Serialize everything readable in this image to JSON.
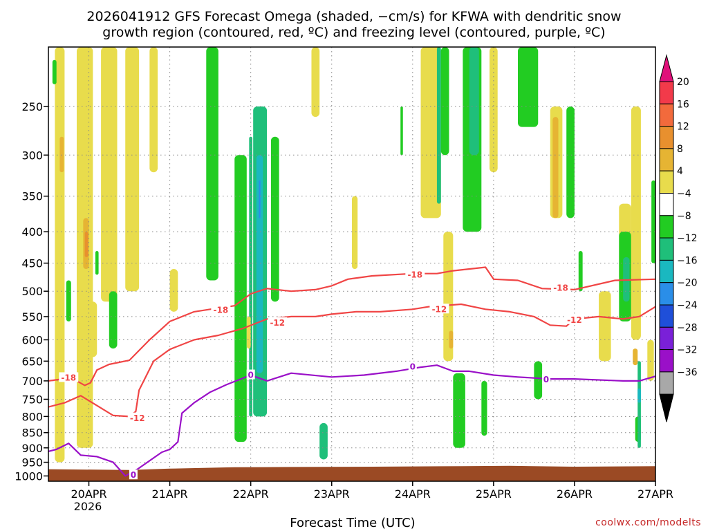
{
  "title_line1": "2026041912 GFS Forecast Omega (shaded, −cm/s) for KFWA with dendritic snow",
  "title_line2": "growth region (contoured, red, ºC) and freezing level (contoured, purple, ºC)",
  "xlabel": "Forecast Time (UTC)",
  "credit": "coolwx.com/modelts",
  "colors": {
    "dendritic_contour": "#f04545",
    "freezing_contour": "#9a10c8",
    "ground": "#9b4a24",
    "grid": "#888888"
  },
  "chart_data": {
    "type": "heatmap",
    "y_scale": "log-pressure (hPa), inverted",
    "ylim": [
      1020,
      200
    ],
    "y_ticks": [
      "250",
      "300",
      "350",
      "400",
      "450",
      "500",
      "550",
      "600",
      "650",
      "700",
      "750",
      "800",
      "850",
      "900",
      "950",
      "1000"
    ],
    "x_ticks": [
      "20APR",
      "21APR",
      "22APR",
      "23APR",
      "24APR",
      "25APR",
      "26APR",
      "27APR"
    ],
    "x_year_label": "2026",
    "grid": "dotted",
    "colorbar": {
      "labels": [
        "20",
        "16",
        "12",
        "8",
        "4",
        "−4",
        "−8",
        "−12",
        "−16",
        "−20",
        "−24",
        "−28",
        "−32",
        "−36"
      ],
      "bands": [
        {
          "color": "#f23a4a"
        },
        {
          "color": "#f26a3c"
        },
        {
          "color": "#e8902e"
        },
        {
          "color": "#e6b433"
        },
        {
          "color": "#e8dc4c"
        },
        {
          "color": "#ffffff"
        },
        {
          "color": "#22cc22"
        },
        {
          "color": "#1fbf7a"
        },
        {
          "color": "#1ab8c0"
        },
        {
          "color": "#2a8ee8"
        },
        {
          "color": "#1f4fd9"
        },
        {
          "color": "#7a20d8"
        },
        {
          "color": "#9a10c8"
        },
        {
          "color": "#a8a8a8"
        }
      ],
      "top_arrow_color": "#e0107a",
      "bottom_arrow_color": "#000000"
    },
    "contours": [
      {
        "label": "-18",
        "color_key": "dendritic_contour",
        "points": [
          [
            19.5,
            700
          ],
          [
            19.68,
            695
          ],
          [
            19.78,
            690
          ],
          [
            19.85,
            700
          ],
          [
            19.95,
            712
          ],
          [
            20.02,
            705
          ],
          [
            20.1,
            672
          ],
          [
            20.25,
            658
          ],
          [
            20.5,
            648
          ],
          [
            20.75,
            600
          ],
          [
            21.0,
            560
          ],
          [
            21.3,
            540
          ],
          [
            21.5,
            535
          ],
          [
            21.8,
            528
          ],
          [
            22.0,
            505
          ],
          [
            22.2,
            495
          ],
          [
            22.5,
            500
          ],
          [
            22.8,
            497
          ],
          [
            23.0,
            490
          ],
          [
            23.2,
            478
          ],
          [
            23.5,
            472
          ],
          [
            24.0,
            468
          ],
          [
            24.3,
            468
          ],
          [
            24.5,
            463
          ],
          [
            24.9,
            457
          ],
          [
            25.0,
            478
          ],
          [
            25.3,
            480
          ],
          [
            25.6,
            495
          ],
          [
            26.0,
            497
          ],
          [
            26.5,
            480
          ],
          [
            27.0,
            478
          ]
        ],
        "label_at": [
          [
            19.75,
            692
          ],
          [
            21.63,
            537
          ],
          [
            24.03,
            470
          ],
          [
            25.83,
            494
          ]
        ]
      },
      {
        "label": "-12",
        "color_key": "dendritic_contour",
        "points": [
          [
            19.5,
            772
          ],
          [
            19.7,
            760
          ],
          [
            19.9,
            740
          ],
          [
            20.1,
            768
          ],
          [
            20.3,
            797
          ],
          [
            20.5,
            800
          ],
          [
            20.58,
            785
          ],
          [
            20.62,
            725
          ],
          [
            20.8,
            650
          ],
          [
            21.0,
            622
          ],
          [
            21.3,
            600
          ],
          [
            21.6,
            590
          ],
          [
            21.9,
            575
          ],
          [
            22.2,
            555
          ],
          [
            22.5,
            550
          ],
          [
            22.8,
            550
          ],
          [
            23.0,
            545
          ],
          [
            23.3,
            540
          ],
          [
            23.6,
            540
          ],
          [
            24.0,
            535
          ],
          [
            24.2,
            530
          ],
          [
            24.6,
            525
          ],
          [
            24.9,
            535
          ],
          [
            25.2,
            540
          ],
          [
            25.5,
            550
          ],
          [
            25.7,
            568
          ],
          [
            25.9,
            570
          ],
          [
            26.0,
            555
          ],
          [
            26.3,
            550
          ],
          [
            26.6,
            555
          ],
          [
            26.8,
            550
          ],
          [
            27.0,
            530
          ]
        ],
        "label_at": [
          [
            20.6,
            805
          ],
          [
            22.33,
            563
          ],
          [
            24.33,
            535
          ],
          [
            26.0,
            557
          ]
        ]
      },
      {
        "label": "0",
        "color_key": "freezing_contour",
        "points": [
          [
            19.5,
            912
          ],
          [
            19.6,
            905
          ],
          [
            19.75,
            885
          ],
          [
            19.9,
            925
          ],
          [
            20.1,
            930
          ],
          [
            20.3,
            950
          ],
          [
            20.45,
            1000
          ],
          [
            20.6,
            975
          ],
          [
            20.9,
            915
          ],
          [
            21.0,
            905
          ],
          [
            21.1,
            880
          ],
          [
            21.15,
            790
          ],
          [
            21.3,
            760
          ],
          [
            21.5,
            730
          ],
          [
            21.7,
            710
          ],
          [
            22.0,
            685
          ],
          [
            22.2,
            700
          ],
          [
            22.5,
            680
          ],
          [
            23.0,
            690
          ],
          [
            23.4,
            685
          ],
          [
            23.8,
            675
          ],
          [
            24.1,
            665
          ],
          [
            24.3,
            660
          ],
          [
            24.5,
            675
          ],
          [
            24.7,
            675
          ],
          [
            25.0,
            685
          ],
          [
            25.3,
            690
          ],
          [
            25.7,
            695
          ],
          [
            26.0,
            695
          ],
          [
            26.6,
            700
          ],
          [
            26.8,
            700
          ],
          [
            27.0,
            688
          ]
        ],
        "label_at": [
          [
            20.55,
            997
          ],
          [
            22.0,
            685
          ],
          [
            24.0,
            664
          ],
          [
            25.65,
            697
          ]
        ]
      }
    ],
    "ground_top": [
      [
        19.5,
        975
      ],
      [
        20.5,
        978
      ],
      [
        21.0,
        973
      ],
      [
        21.8,
        968
      ],
      [
        22.5,
        967
      ],
      [
        23.5,
        966
      ],
      [
        24.6,
        964
      ],
      [
        25.2,
        963
      ],
      [
        26.0,
        966
      ],
      [
        27.0,
        964
      ]
    ],
    "omega_features": [
      {
        "c": 4,
        "x": [
          19.58,
          19.7
        ],
        "p": [
          200,
          950
        ]
      },
      {
        "c": 4,
        "x": [
          19.85,
          20.05
        ],
        "p": [
          200,
          900
        ]
      },
      {
        "c": 4,
        "x": [
          20.15,
          20.35
        ],
        "p": [
          200,
          520
        ]
      },
      {
        "c": 4,
        "x": [
          20.45,
          20.62
        ],
        "p": [
          200,
          500
        ]
      },
      {
        "c": 4,
        "x": [
          19.95,
          20.1
        ],
        "p": [
          520,
          640
        ]
      },
      {
        "c": 3,
        "x": [
          19.64,
          19.69
        ],
        "p": [
          280,
          320
        ]
      },
      {
        "c": 3,
        "x": [
          19.93,
          20.0
        ],
        "p": [
          380,
          460
        ]
      },
      {
        "c": 2,
        "x": [
          19.95,
          19.99
        ],
        "p": [
          400,
          440
        ]
      },
      {
        "c": 6,
        "x": [
          19.55,
          19.6
        ],
        "p": [
          210,
          230
        ]
      },
      {
        "c": 6,
        "x": [
          20.08,
          20.12
        ],
        "p": [
          430,
          470
        ]
      },
      {
        "c": 6,
        "x": [
          20.25,
          20.35
        ],
        "p": [
          500,
          620
        ]
      },
      {
        "c": 6,
        "x": [
          19.72,
          19.78
        ],
        "p": [
          480,
          560
        ]
      },
      {
        "c": 4,
        "x": [
          20.75,
          20.85
        ],
        "p": [
          200,
          320
        ]
      },
      {
        "c": 4,
        "x": [
          21.0,
          21.1
        ],
        "p": [
          460,
          540
        ]
      },
      {
        "c": 6,
        "x": [
          21.45,
          21.6
        ],
        "p": [
          200,
          480
        ]
      },
      {
        "c": 6,
        "x": [
          21.8,
          21.95
        ],
        "p": [
          300,
          880
        ]
      },
      {
        "c": 7,
        "x": [
          21.98,
          22.02
        ],
        "p": [
          280,
          800
        ]
      },
      {
        "c": 7,
        "x": [
          22.03,
          22.2
        ],
        "p": [
          250,
          800
        ]
      },
      {
        "c": 8,
        "x": [
          22.07,
          22.15
        ],
        "p": [
          300,
          680
        ]
      },
      {
        "c": 9,
        "x": [
          22.1,
          22.12
        ],
        "p": [
          330,
          380
        ]
      },
      {
        "c": 6,
        "x": [
          22.25,
          22.35
        ],
        "p": [
          280,
          520
        ]
      },
      {
        "c": 4,
        "x": [
          21.95,
          22.0
        ],
        "p": [
          550,
          620
        ]
      },
      {
        "c": 6,
        "x": [
          23.85,
          23.88
        ],
        "p": [
          250,
          300
        ]
      },
      {
        "c": 4,
        "x": [
          22.75,
          22.85
        ],
        "p": [
          200,
          260
        ]
      },
      {
        "c": 4,
        "x": [
          23.25,
          23.32
        ],
        "p": [
          350,
          460
        ]
      },
      {
        "c": 7,
        "x": [
          22.85,
          22.95
        ],
        "p": [
          820,
          940
        ]
      },
      {
        "c": 4,
        "x": [
          24.1,
          24.35
        ],
        "p": [
          200,
          380
        ]
      },
      {
        "c": 7,
        "x": [
          24.3,
          24.35
        ],
        "p": [
          200,
          360
        ]
      },
      {
        "c": 6,
        "x": [
          24.35,
          24.45
        ],
        "p": [
          200,
          300
        ]
      },
      {
        "c": 4,
        "x": [
          24.38,
          24.5
        ],
        "p": [
          400,
          650
        ]
      },
      {
        "c": 3,
        "x": [
          24.45,
          24.5
        ],
        "p": [
          580,
          620
        ]
      },
      {
        "c": 6,
        "x": [
          24.5,
          24.65
        ],
        "p": [
          680,
          900
        ]
      },
      {
        "c": 6,
        "x": [
          24.62,
          24.85
        ],
        "p": [
          200,
          400
        ]
      },
      {
        "c": 7,
        "x": [
          24.7,
          24.82
        ],
        "p": [
          200,
          300
        ]
      },
      {
        "c": 6,
        "x": [
          24.85,
          24.92
        ],
        "p": [
          700,
          860
        ]
      },
      {
        "c": 4,
        "x": [
          24.95,
          25.05
        ],
        "p": [
          200,
          320
        ]
      },
      {
        "c": 6,
        "x": [
          25.3,
          25.55
        ],
        "p": [
          200,
          270
        ]
      },
      {
        "c": 4,
        "x": [
          25.7,
          25.85
        ],
        "p": [
          250,
          380
        ]
      },
      {
        "c": 3,
        "x": [
          25.73,
          25.8
        ],
        "p": [
          260,
          380
        ]
      },
      {
        "c": 6,
        "x": [
          25.9,
          26.0
        ],
        "p": [
          250,
          380
        ]
      },
      {
        "c": 6,
        "x": [
          26.05,
          26.1
        ],
        "p": [
          430,
          500
        ]
      },
      {
        "c": 4,
        "x": [
          26.3,
          26.45
        ],
        "p": [
          500,
          650
        ]
      },
      {
        "c": 4,
        "x": [
          26.55,
          26.7
        ],
        "p": [
          360,
          480
        ]
      },
      {
        "c": 6,
        "x": [
          26.55,
          26.7
        ],
        "p": [
          400,
          560
        ]
      },
      {
        "c": 7,
        "x": [
          26.6,
          26.68
        ],
        "p": [
          440,
          520
        ]
      },
      {
        "c": 4,
        "x": [
          26.7,
          26.82
        ],
        "p": [
          250,
          600
        ]
      },
      {
        "c": 6,
        "x": [
          26.75,
          26.82
        ],
        "p": [
          800,
          880
        ]
      },
      {
        "c": 7,
        "x": [
          26.78,
          26.82
        ],
        "p": [
          650,
          900
        ]
      },
      {
        "c": 8,
        "x": [
          26.78,
          26.82
        ],
        "p": [
          720,
          760
        ]
      },
      {
        "c": 3,
        "x": [
          26.72,
          26.78
        ],
        "p": [
          620,
          660
        ]
      },
      {
        "c": 6,
        "x": [
          26.95,
          27.0
        ],
        "p": [
          330,
          450
        ]
      },
      {
        "c": 4,
        "x": [
          26.9,
          26.98
        ],
        "p": [
          600,
          700
        ]
      },
      {
        "c": 6,
        "x": [
          25.5,
          25.6
        ],
        "p": [
          650,
          750
        ]
      }
    ]
  }
}
